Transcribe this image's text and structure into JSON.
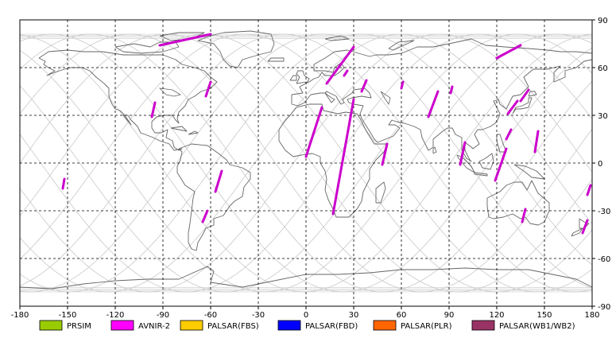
{
  "map": {
    "type": "equirectangular-swath-map",
    "x_range": [
      -180,
      180
    ],
    "y_range": [
      -90,
      90
    ],
    "x_ticks": [
      "-180",
      "-150",
      "-120",
      "-90",
      "-60",
      "-30",
      "0",
      "30",
      "60",
      "90",
      "120",
      "150",
      "180"
    ],
    "y_ticks_right": [
      "90",
      "60",
      "30",
      "0",
      "-30",
      "-60",
      "-90"
    ],
    "grid": true,
    "colors": {
      "coast": "#666666",
      "orbit": "#c8c8c8",
      "grid": "#000000",
      "swath": "#cc00cc"
    }
  },
  "legend": [
    {
      "label": "PRSIM",
      "color": "#99cc00"
    },
    {
      "label": "AVNIR-2",
      "color": "#ff00ff"
    },
    {
      "label": "PALSAR(FBS)",
      "color": "#ffcc00"
    },
    {
      "label": "PALSAR(FBD)",
      "color": "#0000ff"
    },
    {
      "label": "PALSAR(PLR)",
      "color": "#ff6600"
    },
    {
      "label": "PALSAR(WB1/WB2)",
      "color": "#993366"
    }
  ],
  "swaths": [
    {
      "from": [
        -92,
        74
      ],
      "to": [
        -60,
        81
      ]
    },
    {
      "from": [
        13,
        50
      ],
      "to": [
        30,
        73
      ]
    },
    {
      "from": [
        120,
        66
      ],
      "to": [
        135,
        74
      ]
    },
    {
      "from": [
        0,
        4
      ],
      "to": [
        10,
        35
      ]
    },
    {
      "from": [
        17,
        -32
      ],
      "to": [
        30,
        40
      ]
    },
    {
      "from": [
        -97,
        29
      ],
      "to": [
        -95,
        38
      ]
    },
    {
      "from": [
        -63,
        42
      ],
      "to": [
        -60,
        51
      ]
    },
    {
      "from": [
        -57,
        -18
      ],
      "to": [
        -53,
        -5
      ]
    },
    {
      "from": [
        -65,
        -37
      ],
      "to": [
        -62,
        -30
      ]
    },
    {
      "from": [
        -153,
        -16
      ],
      "to": [
        -152,
        -10
      ]
    },
    {
      "from": [
        48,
        -1
      ],
      "to": [
        51,
        12
      ]
    },
    {
      "from": [
        60,
        47
      ],
      "to": [
        61,
        51
      ]
    },
    {
      "from": [
        77,
        29
      ],
      "to": [
        83,
        45
      ]
    },
    {
      "from": [
        91,
        44
      ],
      "to": [
        92,
        48
      ]
    },
    {
      "from": [
        97,
        -1
      ],
      "to": [
        100,
        13
      ]
    },
    {
      "from": [
        119,
        -11
      ],
      "to": [
        126,
        9
      ]
    },
    {
      "from": [
        126,
        15
      ],
      "to": [
        129,
        21
      ]
    },
    {
      "from": [
        127,
        31
      ],
      "to": [
        133,
        39
      ]
    },
    {
      "from": [
        135,
        39
      ],
      "to": [
        140,
        46
      ]
    },
    {
      "from": [
        144,
        7
      ],
      "to": [
        146,
        20
      ]
    },
    {
      "from": [
        136,
        -37
      ],
      "to": [
        138,
        -29
      ]
    },
    {
      "from": [
        174,
        -44
      ],
      "to": [
        177,
        -36
      ]
    },
    {
      "from": [
        177,
        -20
      ],
      "to": [
        179,
        -14
      ]
    },
    {
      "from": [
        35,
        45
      ],
      "to": [
        38,
        52
      ]
    },
    {
      "from": [
        24,
        55
      ],
      "to": [
        26,
        58
      ]
    }
  ]
}
